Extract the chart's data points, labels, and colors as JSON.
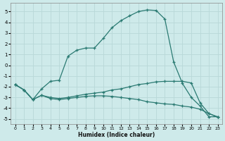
{
  "xlabel": "Humidex (Indice chaleur)",
  "background_color": "#ceeaea",
  "grid_color": "#b8d8d8",
  "line_color": "#2a7a72",
  "xlim": [
    -0.5,
    23.5
  ],
  "ylim": [
    -5.5,
    5.8
  ],
  "xticks": [
    0,
    1,
    2,
    3,
    4,
    5,
    6,
    7,
    8,
    9,
    10,
    11,
    12,
    13,
    14,
    15,
    16,
    17,
    18,
    19,
    20,
    21,
    22,
    23
  ],
  "yticks": [
    -5,
    -4,
    -3,
    -2,
    -1,
    0,
    1,
    2,
    3,
    4,
    5
  ],
  "line1_x": [
    0,
    1,
    2,
    3,
    4,
    5,
    6,
    7,
    8,
    9,
    10,
    11,
    12,
    13,
    14,
    15,
    16,
    17,
    18,
    19,
    20,
    21,
    22,
    23
  ],
  "line1_y": [
    -1.8,
    -2.3,
    -3.2,
    -2.2,
    -1.5,
    -1.4,
    0.85,
    1.4,
    1.6,
    1.6,
    2.5,
    3.5,
    4.15,
    4.6,
    5.0,
    5.15,
    5.1,
    4.3,
    0.3,
    -1.7,
    -3.0,
    -3.8,
    -4.8,
    -4.8
  ],
  "line2_x": [
    0,
    1,
    2,
    3,
    4,
    5,
    6,
    7,
    8,
    9,
    10,
    11,
    12,
    13,
    14,
    15,
    16,
    17,
    18,
    19,
    20,
    21,
    22,
    23
  ],
  "line2_y": [
    -1.8,
    -2.3,
    -3.2,
    -2.8,
    -3.0,
    -3.1,
    -3.0,
    -2.85,
    -2.7,
    -2.6,
    -2.5,
    -2.3,
    -2.2,
    -2.0,
    -1.8,
    -1.7,
    -1.55,
    -1.5,
    -1.5,
    -1.5,
    -1.65,
    -3.5,
    -4.5,
    -4.8
  ],
  "line3_x": [
    0,
    1,
    2,
    3,
    4,
    5,
    6,
    7,
    8,
    9,
    10,
    11,
    12,
    13,
    14,
    15,
    16,
    17,
    18,
    19,
    20,
    21,
    22,
    23
  ],
  "line3_y": [
    -1.8,
    -2.3,
    -3.2,
    -2.8,
    -3.1,
    -3.2,
    -3.1,
    -3.0,
    -2.9,
    -2.85,
    -2.85,
    -2.9,
    -3.0,
    -3.1,
    -3.2,
    -3.4,
    -3.5,
    -3.6,
    -3.65,
    -3.8,
    -3.9,
    -4.1,
    -4.5,
    -4.85
  ]
}
